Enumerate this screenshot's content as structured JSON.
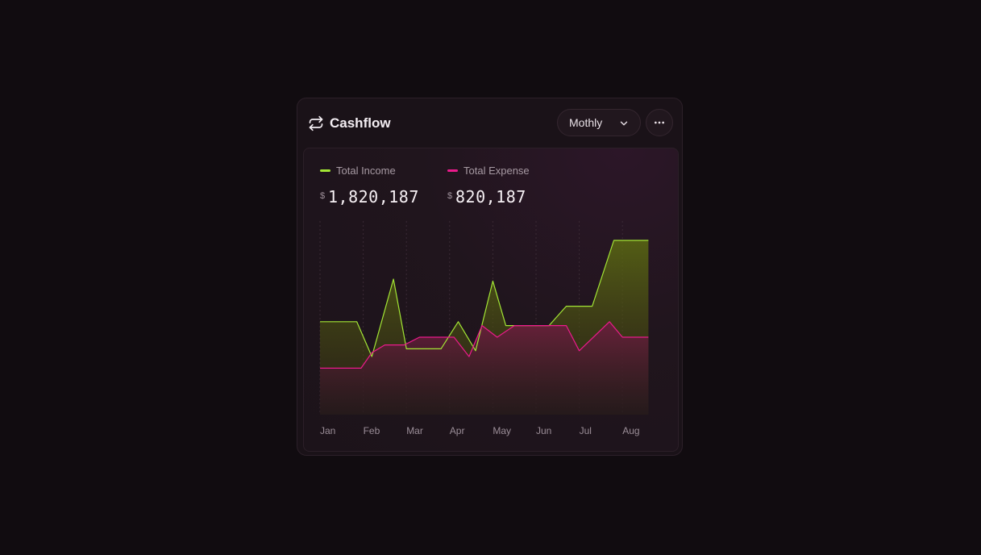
{
  "card": {
    "title": "Cashflow",
    "title_icon": "repeat-icon",
    "period_select": {
      "value": "Mothly"
    },
    "more_icon": "more-horizontal-icon"
  },
  "legend": [
    {
      "name": "Total Income",
      "currency": "$",
      "value": "1,820,187",
      "color": "#a3e635"
    },
    {
      "name": "Total Expense",
      "currency": "$",
      "value": "820,187",
      "color": "#ec1a8c"
    }
  ],
  "chart_data": {
    "type": "area",
    "categories": [
      "Jan",
      "Feb",
      "Mar",
      "Apr",
      "May",
      "Jun",
      "Jul",
      "Aug"
    ],
    "series": [
      {
        "name": "Total Income",
        "color": "#a3e635",
        "x": [
          0,
          0.85,
          1.2,
          1.7,
          2.0,
          2.8,
          3.2,
          3.6,
          4.0,
          4.3,
          4.6,
          5.3,
          5.7,
          6.3,
          6.8,
          7.6
        ],
        "values": [
          48,
          48,
          30,
          70,
          34,
          34,
          48,
          33,
          69,
          46,
          46,
          46,
          56,
          56,
          90,
          90
        ]
      },
      {
        "name": "Total Expense",
        "color": "#ec1a8c",
        "x": [
          0,
          0.95,
          1.2,
          1.5,
          1.95,
          2.3,
          2.6,
          3.1,
          3.45,
          3.75,
          4.1,
          4.5,
          5.0,
          5.7,
          6.0,
          6.7,
          7.0,
          7.6
        ],
        "values": [
          24,
          24,
          32,
          36,
          36,
          40,
          40,
          40,
          30,
          46,
          40,
          46,
          46,
          46,
          33,
          48,
          40,
          40
        ]
      }
    ],
    "ylim": [
      0,
      100
    ],
    "xlim": [
      0,
      7.6
    ]
  }
}
